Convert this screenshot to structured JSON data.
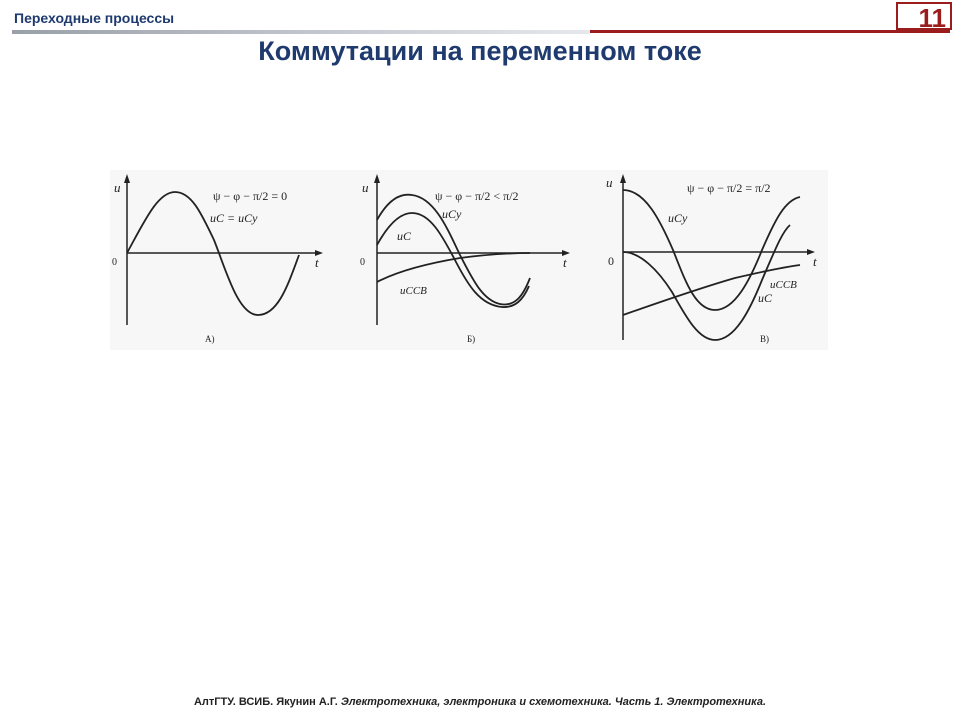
{
  "header": {
    "section_title": "Переходные процессы",
    "slide_number": "11"
  },
  "title": "Коммутации на переменном токе",
  "figures": {
    "a": {
      "formula": "ψ − φ − π/2 = 0",
      "u_axis": "u",
      "t_axis": "t",
      "origin": "0",
      "curve_label_main": "uC = uCy",
      "panel": "А)"
    },
    "b": {
      "formula": "ψ − φ − π/2 < π/2",
      "u_axis": "u",
      "t_axis": "t",
      "origin": "0",
      "label_ucy": "uCy",
      "label_uc": "uC",
      "label_ucsv": "uCCB",
      "panel": "Б)"
    },
    "c": {
      "formula": "ψ − φ − π/2 = π/2",
      "u_axis": "u",
      "t_axis": "t",
      "origin": "0",
      "label_ucy": "uCy",
      "label_ucsv": "uCCB",
      "label_uc": "uC",
      "panel": "В)"
    }
  },
  "footer": {
    "org": "АлтГТУ. ВСИБ. Якунин А.Г.",
    "course": "Электротехника, электроника и схемотехника. Часть 1. Электротехника."
  },
  "colors": {
    "title": "#1f3a6e",
    "accent": "#9b1c1c"
  }
}
